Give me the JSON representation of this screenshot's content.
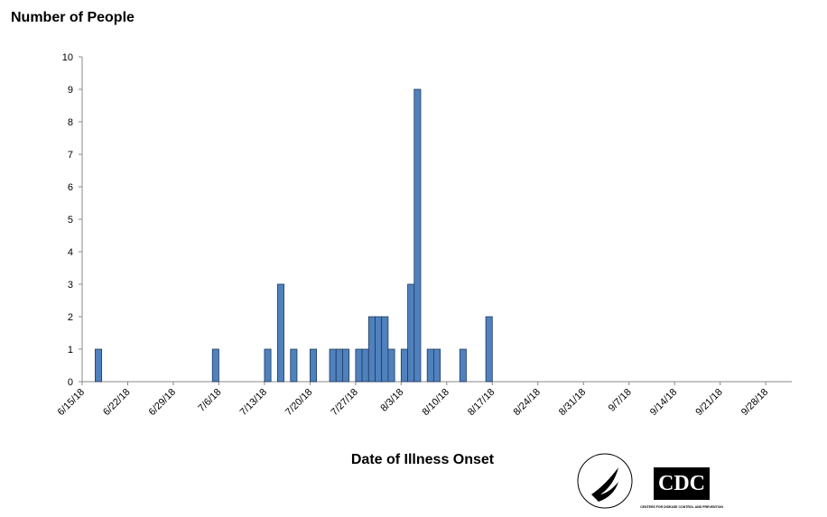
{
  "chart_data": {
    "type": "bar",
    "title": "Number of People",
    "x_label": "Date of Illness Onset",
    "x": [
      "6/17/18",
      "7/5/18",
      "7/13/18",
      "7/15/18",
      "7/17/18",
      "7/20/18",
      "7/23/18",
      "7/24/18",
      "7/25/18",
      "7/27/18",
      "7/28/18",
      "7/29/18",
      "7/30/18",
      "7/31/18",
      "8/1/18",
      "8/3/18",
      "8/4/18",
      "8/5/18",
      "8/7/18",
      "8/8/18",
      "8/12/18",
      "8/16/18"
    ],
    "values": [
      1,
      1,
      1,
      3,
      1,
      1,
      1,
      1,
      1,
      1,
      1,
      2,
      2,
      2,
      1,
      1,
      3,
      9,
      1,
      1,
      1,
      2
    ],
    "color": "#4f81bd",
    "xlim": [
      "6/15/18",
      "10/2/18"
    ],
    "xticks": [
      "6/15/18",
      "6/22/18",
      "6/29/18",
      "7/6/18",
      "7/13/18",
      "7/20/18",
      "7/27/18",
      "8/3/18",
      "8/10/18",
      "8/17/18",
      "8/24/18",
      "8/31/18",
      "9/7/18",
      "9/14/18",
      "9/21/18",
      "9/28/18"
    ],
    "ylim": [
      0,
      10
    ],
    "yticks": [
      0,
      1,
      2,
      3,
      4,
      5,
      6,
      7,
      8,
      9,
      10
    ],
    "grid": false
  },
  "logo": {
    "text": "CDC",
    "subtitle": "CENTERS FOR DISEASE CONTROL AND PREVENTION"
  }
}
